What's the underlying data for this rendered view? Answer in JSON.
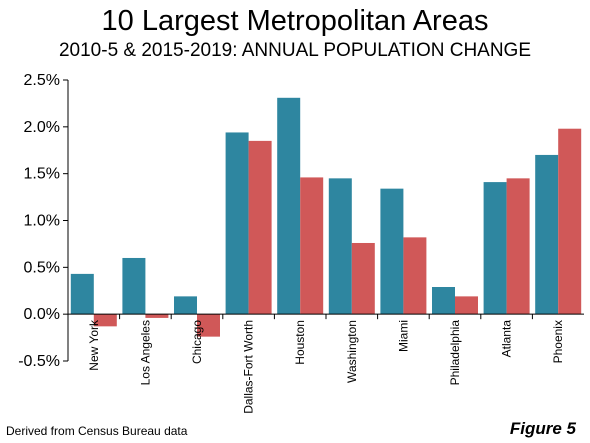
{
  "chart_data": {
    "type": "bar",
    "title": "10 Largest Metropolitan Areas",
    "subtitle": "2010-5 & 2015-2019: ANNUAL POPULATION CHANGE",
    "categories": [
      "New York",
      "Los Angeles",
      "Chicago",
      "Dallas-Fort Worth",
      "Houston",
      "Washington",
      "Miami",
      "Philadelphia",
      "Atlanta",
      "Phoenix"
    ],
    "series": [
      {
        "name": "",
        "color": "#2e86a0",
        "values": [
          0.43,
          0.6,
          0.19,
          1.94,
          2.31,
          1.45,
          1.34,
          0.29,
          1.41,
          1.7
        ]
      },
      {
        "name": "",
        "color": "#d05858",
        "values": [
          -0.13,
          -0.04,
          -0.24,
          1.85,
          1.46,
          0.76,
          0.82,
          0.19,
          1.45,
          1.98
        ]
      }
    ],
    "ylim": [
      -0.5,
      2.5
    ],
    "yticks": [
      -0.5,
      0.0,
      0.5,
      1.0,
      1.5,
      2.0,
      2.5
    ],
    "ytick_labels": [
      "-0.5%",
      "0.0%",
      "0.5%",
      "1.0%",
      "1.5%",
      "2.0%",
      "2.5%"
    ],
    "xlabel": "",
    "ylabel": "",
    "grid": false
  },
  "footer": {
    "source": "Derived from Census Bureau data",
    "figure": "Figure 5"
  }
}
